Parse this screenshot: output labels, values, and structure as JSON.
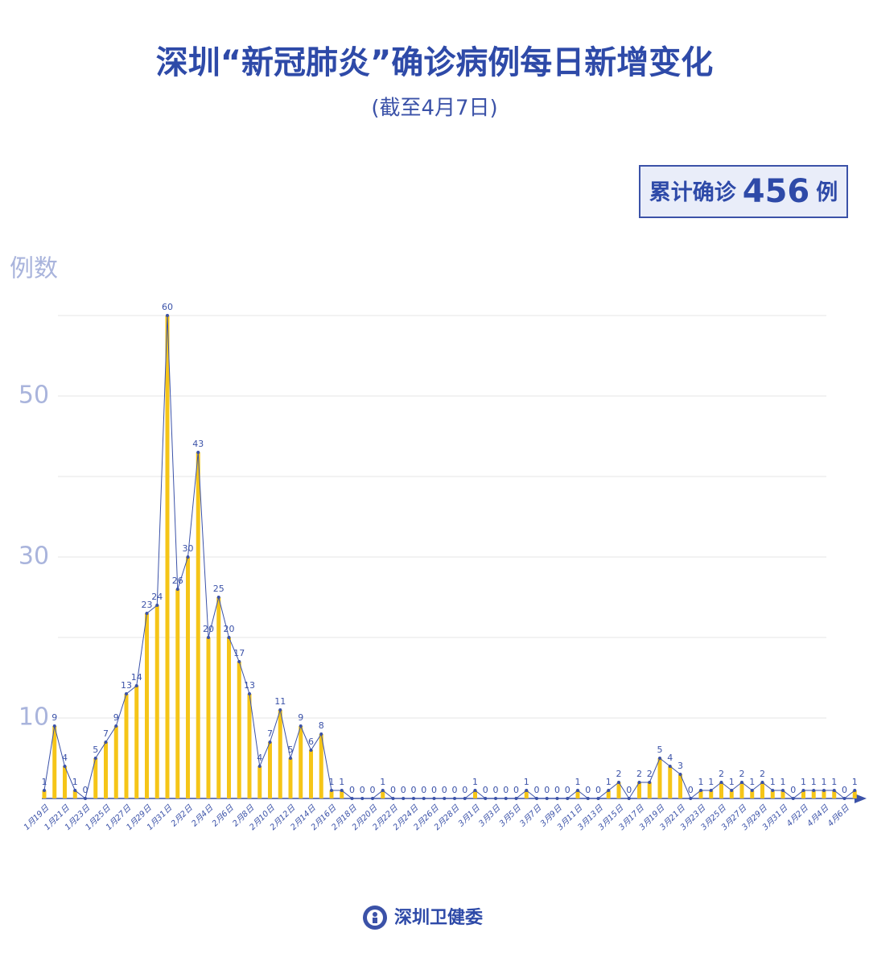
{
  "chart_data": {
    "type": "bar",
    "title": "深圳“新冠肺炎”确诊病例每日新增变化",
    "subtitle": "(截至4月7日)",
    "total_box": {
      "prefix": "累计确诊",
      "value": 456,
      "suffix": "例"
    },
    "y_label": "例数",
    "footer": "深圳卫健委",
    "categories": [
      "1月19日",
      null,
      "1月21日",
      null,
      "1月23日",
      null,
      "1月25日",
      null,
      "1月27日",
      null,
      "1月29日",
      null,
      "1月31日",
      null,
      "2月2日",
      null,
      "2月4日",
      null,
      "2月6日",
      null,
      "2月8日",
      null,
      "2月10日",
      null,
      "2月12日",
      null,
      "2月14日",
      null,
      "2月16日",
      null,
      "2月18日",
      null,
      "2月20日",
      null,
      "2月22日",
      null,
      "2月24日",
      null,
      "2月26日",
      null,
      "2月28日",
      null,
      "3月1日",
      null,
      "3月3日",
      null,
      "3月5日",
      null,
      "3月7日",
      null,
      "3月9日",
      null,
      "3月11日",
      null,
      "3月13日",
      null,
      "3月15日",
      null,
      "3月17日",
      null,
      "3月19日",
      null,
      "3月21日",
      null,
      "3月23日",
      null,
      "3月25日",
      null,
      "3月27日",
      null,
      "3月29日",
      null,
      "3月31日",
      null,
      "4月2日",
      null,
      "4月4日",
      null,
      "4月6日",
      null
    ],
    "values": [
      1,
      9,
      4,
      1,
      0,
      5,
      7,
      9,
      13,
      14,
      23,
      24,
      60,
      26,
      30,
      43,
      20,
      25,
      20,
      17,
      13,
      4,
      7,
      11,
      5,
      9,
      6,
      8,
      1,
      1,
      0,
      0,
      0,
      1,
      0,
      0,
      0,
      0,
      0,
      0,
      0,
      0,
      1,
      0,
      0,
      0,
      0,
      1,
      0,
      0,
      0,
      0,
      1,
      0,
      0,
      1,
      2,
      0,
      2,
      2,
      5,
      4,
      3,
      0,
      1,
      1,
      2,
      1,
      2,
      1,
      2,
      1,
      1,
      0,
      1,
      1,
      1,
      1,
      0,
      1
    ],
    "color": "#f5c518",
    "line": true,
    "line_color": "#3b52a8",
    "ylim": [
      0,
      60
    ],
    "yticks": [
      10,
      30,
      50
    ],
    "grid_lines": [
      10,
      20,
      30,
      40,
      50,
      60
    ],
    "grid": true
  }
}
